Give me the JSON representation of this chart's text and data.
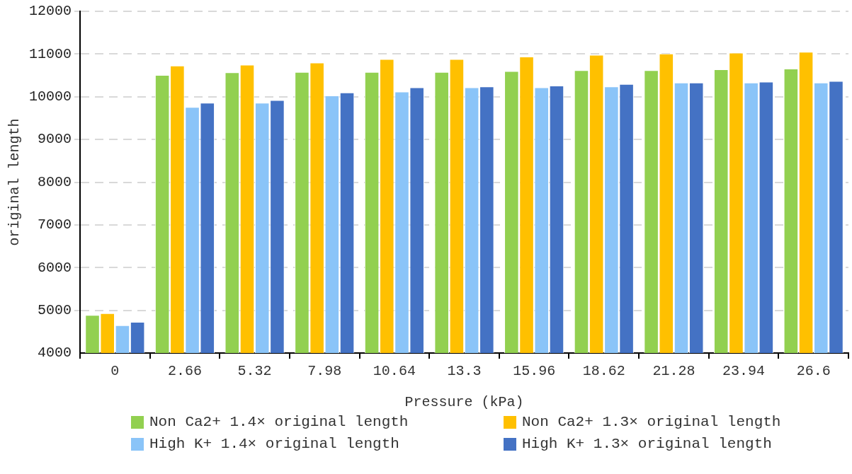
{
  "chart_data": {
    "type": "bar",
    "xlabel": "Pressure (kPa)",
    "ylabel": "original length",
    "categories": [
      "0",
      "2.66",
      "5.32",
      "7.98",
      "10.64",
      "13.3",
      "15.96",
      "18.62",
      "21.28",
      "23.94",
      "26.6"
    ],
    "series": [
      {
        "name": "Non Ca2+ 1.4× original length",
        "color": "#92d050",
        "values": [
          4890,
          10510,
          10570,
          10580,
          10580,
          10580,
          10600,
          10620,
          10620,
          10640,
          10660
        ]
      },
      {
        "name": "Non Ca2+ 1.3× original length",
        "color": "#ffc000",
        "values": [
          4930,
          10730,
          10750,
          10800,
          10880,
          10880,
          10940,
          10980,
          11010,
          11030,
          11050
        ]
      },
      {
        "name": "High K+ 1.4× original length",
        "color": "#8ac4f8",
        "values": [
          4650,
          9760,
          9860,
          10030,
          10120,
          10220,
          10220,
          10240,
          10330,
          10330,
          10330
        ]
      },
      {
        "name": "High K+ 1.3× original length",
        "color": "#4472c4",
        "values": [
          4730,
          9860,
          9920,
          10100,
          10220,
          10240,
          10260,
          10300,
          10330,
          10350,
          10370
        ]
      }
    ],
    "ylim": [
      4000,
      12000
    ],
    "yticks": [
      4000,
      5000,
      6000,
      7000,
      8000,
      9000,
      10000,
      11000,
      12000
    ],
    "grid": "y",
    "legend": "bottom"
  }
}
